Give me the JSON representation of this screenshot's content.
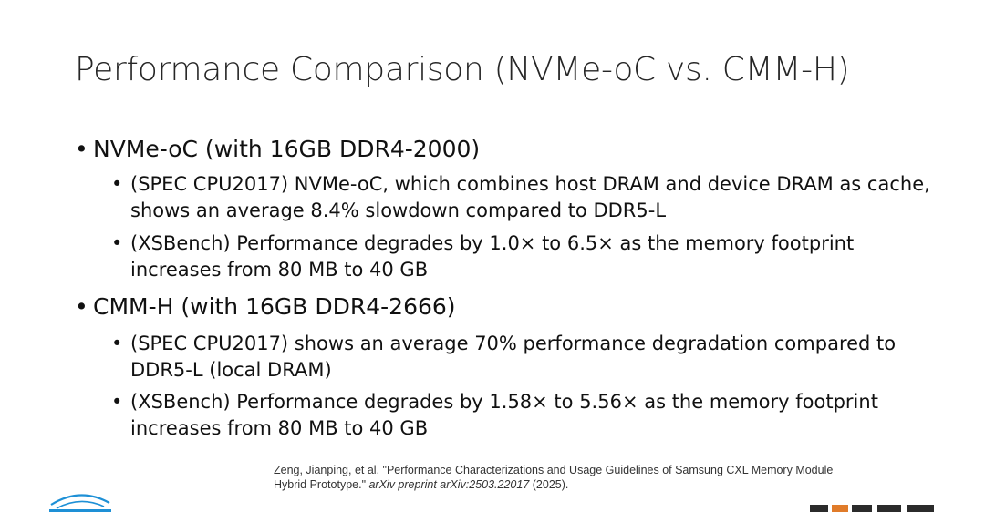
{
  "slide": {
    "title": "Performance Comparison (NVMe-oC vs. CMM-H)",
    "bullet_char": "•",
    "sections": [
      {
        "heading": "NVMe-oC (with 16GB DDR4-2000)",
        "items": [
          "(SPEC CPU2017) NVMe-oC, which combines host DRAM and device DRAM as cache, shows an average 8.4% slowdown compared to DDR5-L",
          "(XSBench) Performance degrades by 1.0× to 6.5× as the memory footprint increases from 80 MB to 40 GB"
        ]
      },
      {
        "heading": "CMM-H (with 16GB DDR4-2666)",
        "items": [
          "(SPEC CPU2017) shows an average 70% performance degradation compared to DDR5-L (local DRAM)",
          "(XSBench) Performance degrades by 1.58× to 5.56× as the memory footprint increases from 80 MB to 40 GB"
        ]
      }
    ],
    "citation": {
      "prefix": "Zeng, Jianping, et al. \"Performance Characterizations and Usage Guidelines of Samsung CXL Memory Module Hybrid Prototype.\" ",
      "journal": "arXiv preprint arXiv:2503.22017",
      "suffix": " (2025)."
    }
  },
  "colors": {
    "accent_blue": "#1e90d6",
    "accent_orange": "#e07b2a",
    "text": "#111111"
  }
}
